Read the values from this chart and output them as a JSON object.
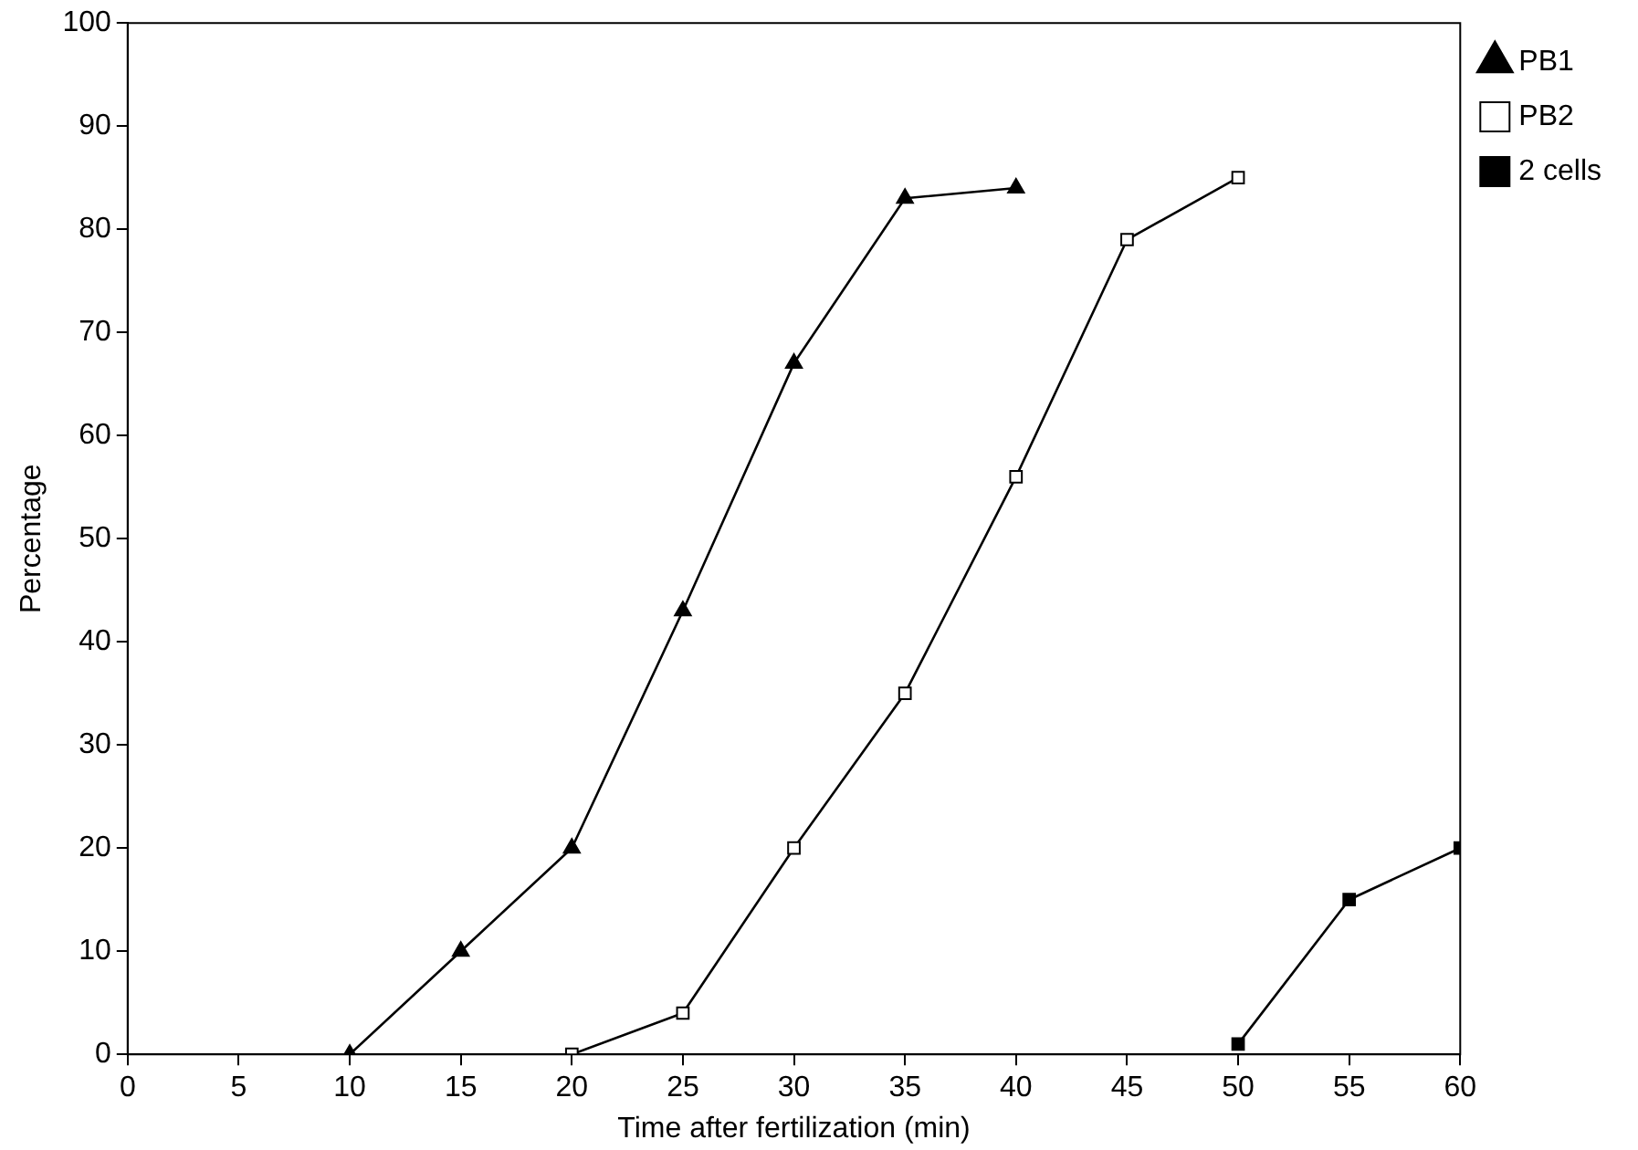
{
  "chart_data": {
    "type": "line",
    "xlabel": "Time after fertilization (min)",
    "ylabel": "Percentage",
    "xlim": [
      0,
      60
    ],
    "xticks": [
      0,
      5,
      10,
      15,
      20,
      25,
      30,
      35,
      40,
      45,
      50,
      55,
      60
    ],
    "ylim": [
      0,
      100
    ],
    "yticks": [
      0,
      10,
      20,
      30,
      40,
      50,
      60,
      70,
      80,
      90,
      100
    ],
    "grid": false,
    "legend": "top right",
    "line_style": "solid",
    "series": [
      {
        "name": "PB1",
        "color": "#000000",
        "marker": "triangle",
        "x": [
          10,
          15,
          20,
          25,
          30,
          35,
          40
        ],
        "values": [
          0,
          10,
          20,
          43,
          67,
          83,
          84
        ]
      },
      {
        "name": "PB2",
        "color": "#000000",
        "marker": "square",
        "x": [
          20,
          25,
          30,
          35,
          40,
          45,
          50
        ],
        "values": [
          0,
          4,
          20,
          35,
          56,
          79,
          85
        ]
      },
      {
        "name": "2 cells",
        "color": "#000000",
        "marker": "square",
        "x": [
          50,
          55,
          60
        ],
        "values": [
          1,
          15,
          20
        ]
      }
    ]
  }
}
